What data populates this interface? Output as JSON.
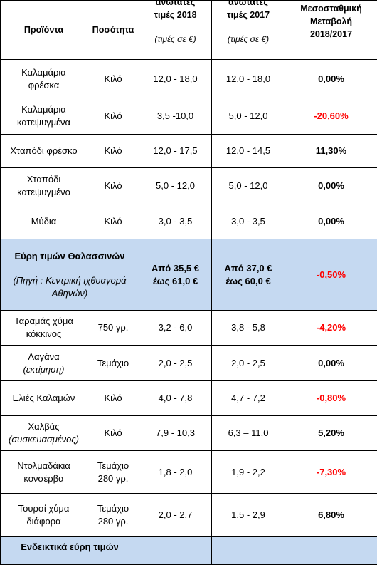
{
  "header": {
    "col_products": "Προϊόντα",
    "col_quantity": "Ποσότητα",
    "col_2018_l1": "ανώτατες",
    "col_2018_l2": "τιμές 2018",
    "col_2018_unit": "(τιμές σε €)",
    "col_2017_l1": "ανώτατες",
    "col_2017_l2": "τιμές 2017",
    "col_2017_unit": "(τιμές σε €)",
    "col_change_l1": "Μεσοσταθμική",
    "col_change_l2": "Μεταβολή",
    "col_change_l3": "2018/2017"
  },
  "rows": [
    {
      "product_l1": "Καλαμάρια",
      "product_l2": "φρέσκα",
      "qty": "Κιλό",
      "p2018": "12,0 - 18,0",
      "p2017": "12,0 - 18,0",
      "change": "0,00%"
    },
    {
      "product_l1": "Καλαμάρια",
      "product_l2": "κατεψυγμένα",
      "qty": "Κιλό",
      "p2018": "3,5 -10,0",
      "p2017": "5,0 - 12,0",
      "change": "-20,60%"
    },
    {
      "product_l1": "Χταπόδι φρέσκο",
      "qty": "Κιλό",
      "p2018": "12,0 - 17,5",
      "p2017": "12,0 - 14,5",
      "change": "11,30%"
    },
    {
      "product_l1": "Χταπόδι",
      "product_l2": "κατεψυγμένο",
      "qty": "Κιλό",
      "p2018": "5,0 - 12,0",
      "p2017": "5,0 - 12,0",
      "change": "0,00%"
    },
    {
      "product_l1": "Μύδια",
      "qty": "Κιλό",
      "p2018": "3,0 - 3,5",
      "p2017": "3,0 - 3,5",
      "change": "0,00%"
    }
  ],
  "seafood_summary": {
    "title": "Εύρη τιμών Θαλασσινών",
    "source_l1": "(Πηγή : Κεντρική ιχθυαγορά",
    "source_l2": "Αθηνών)",
    "p2018_l1": "Από 35,5 €",
    "p2018_l2": "έως 61,0 €",
    "p2017_l1": "Από 37,0 €",
    "p2017_l2": "έως 60,0 €",
    "change": "-0,50%"
  },
  "rows2": [
    {
      "product_l1": "Ταραμάς χύμα",
      "product_l2": "κόκκινος",
      "qty_l1": "750 γρ.",
      "p2018": "3,2 - 6,0",
      "p2017": "3,8 - 5,8",
      "change": "-4,20%"
    },
    {
      "product_l1": "Λαγάνα",
      "product_l2": "(εκτίμηση)",
      "qty_l1": "Τεμάχιο",
      "p2018": "2,0 - 2,5",
      "p2017": "2,0 - 2,5",
      "change": "0,00%"
    },
    {
      "product_l1": "Ελιές Καλαμών",
      "qty_l1": "Κιλό",
      "p2018": "4,0 - 7,8",
      "p2017": "4,7 - 7,2",
      "change": "-0,80%"
    },
    {
      "product_l1": "Χαλβάς",
      "product_l2": "(συσκευασμένος)",
      "qty_l1": "Κιλό",
      "p2018": "7,9 - 10,3",
      "p2017": "6,3 – 11,0",
      "change": "5,20%"
    },
    {
      "product_l1": "Ντολμαδάκια",
      "product_l2": "κονσέρβα",
      "qty_l1": "Τεμάχιο",
      "qty_l2": "280 γρ.",
      "p2018": "1,8 - 2,0",
      "p2017": "1,9 - 2,2",
      "change": "-7,30%"
    },
    {
      "product_l1": "Τουρσί χύμα",
      "product_l2": "διάφορα",
      "qty_l1": "Τεμάχιο",
      "qty_l2": "280 γρ.",
      "p2018": "2,0 - 2,7",
      "p2017": "1,5 - 2,9",
      "change": "6,80%"
    }
  ],
  "footer_partial": {
    "title": "Ενδεικτικά εύρη τιμών"
  },
  "colors": {
    "highlight": "#c5d9f1",
    "negative": "#ff0000"
  }
}
